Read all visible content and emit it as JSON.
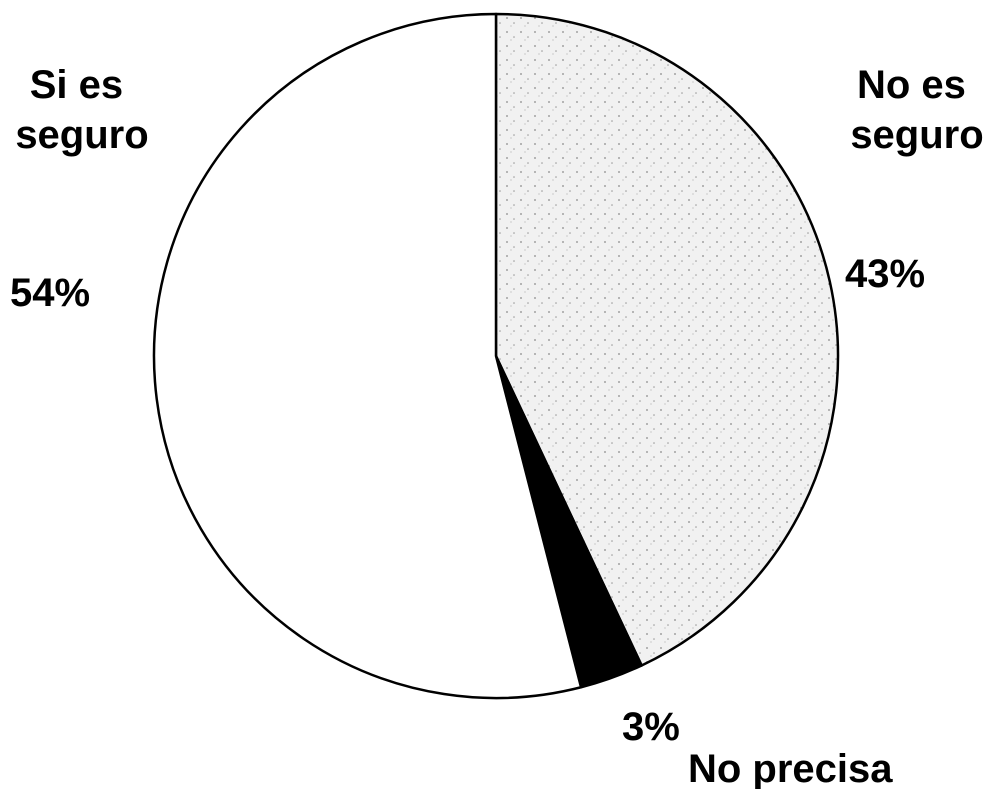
{
  "chart_data": {
    "type": "pie",
    "slices": [
      {
        "label": "No es seguro",
        "label_lines": [
          "No es",
          "seguro"
        ],
        "value": 43,
        "value_label": "43%",
        "fill": "#f1f1f1",
        "pattern": "stipple"
      },
      {
        "label": "No precisa",
        "label_lines": [
          "No precisa"
        ],
        "value": 3,
        "value_label": "3%",
        "fill": "#000000",
        "pattern": "solid"
      },
      {
        "label": "Si es seguro",
        "label_lines": [
          "Si es",
          "seguro"
        ],
        "value": 54,
        "value_label": "54%",
        "fill": "#ffffff",
        "pattern": "solid"
      }
    ],
    "start_angle": "12 o'clock",
    "direction": "clockwise",
    "legend": "none",
    "stroke_color": "#000000"
  }
}
